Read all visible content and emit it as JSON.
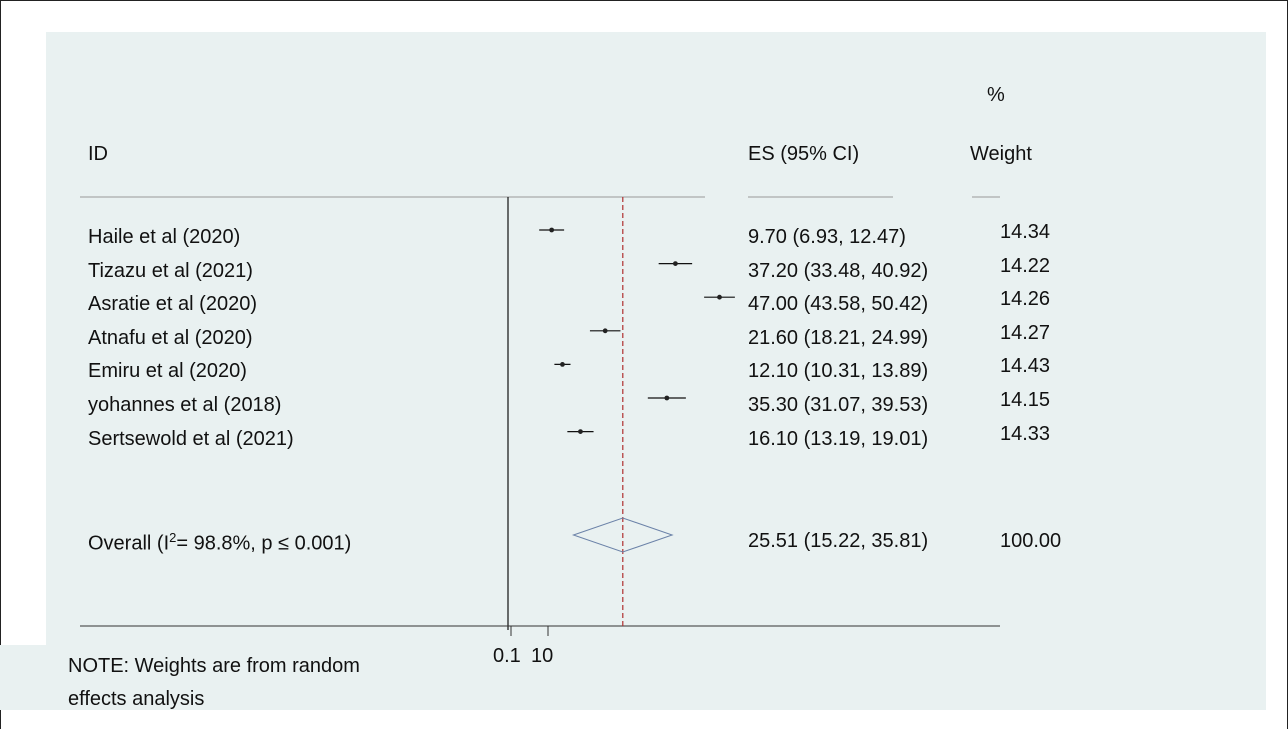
{
  "headers": {
    "id": "ID",
    "es": "ES (95% CI)",
    "weight_pct": "%",
    "weight": "Weight"
  },
  "overall_label_parts": {
    "pre": "Overall  (I",
    "sup": "2",
    "post": "= 98.8%, p ≤ 0.001)"
  },
  "note_line1": "NOTE: Weights are from random",
  "note_line2": "effects analysis",
  "x_ticks": [
    "0.1",
    "10"
  ],
  "colors": {
    "panel_bg": "#e9f1f1",
    "null_line": "#111111",
    "overall_line": "#b03030",
    "diamond": "#6b82a8",
    "ci_line": "#111111"
  },
  "chart_data": {
    "type": "forest",
    "effect_measure": "ES (95% CI)",
    "null_value": 0,
    "overall_line_value": 25.51,
    "studies": [
      {
        "id": "Haile et al (2020)",
        "es": 9.7,
        "lo": 6.93,
        "hi": 12.47,
        "ci_text": "9.70 (6.93, 12.47)",
        "weight": "14.34"
      },
      {
        "id": "Tizazu et al (2021)",
        "es": 37.2,
        "lo": 33.48,
        "hi": 40.92,
        "ci_text": "37.20 (33.48, 40.92)",
        "weight": "14.22"
      },
      {
        "id": "Asratie et al (2020)",
        "es": 47.0,
        "lo": 43.58,
        "hi": 50.42,
        "ci_text": "47.00 (43.58, 50.42)",
        "weight": "14.26"
      },
      {
        "id": "Atnafu et al (2020)",
        "es": 21.6,
        "lo": 18.21,
        "hi": 24.99,
        "ci_text": "21.60 (18.21, 24.99)",
        "weight": "14.27"
      },
      {
        "id": "Emiru et al (2020)",
        "es": 12.1,
        "lo": 10.31,
        "hi": 13.89,
        "ci_text": "12.10 (10.31, 13.89)",
        "weight": "14.43"
      },
      {
        "id": "yohannes et al (2018)",
        "es": 35.3,
        "lo": 31.07,
        "hi": 39.53,
        "ci_text": "35.30 (31.07, 39.53)",
        "weight": "14.15"
      },
      {
        "id": "Sertsewold et al (2021)",
        "es": 16.1,
        "lo": 13.19,
        "hi": 19.01,
        "ci_text": "16.10 (13.19, 19.01)",
        "weight": "14.33"
      }
    ],
    "overall": {
      "es": 25.51,
      "lo": 15.22,
      "hi": 35.81,
      "ci_text": "25.51 (15.22, 35.81)",
      "weight": "100.00"
    }
  }
}
